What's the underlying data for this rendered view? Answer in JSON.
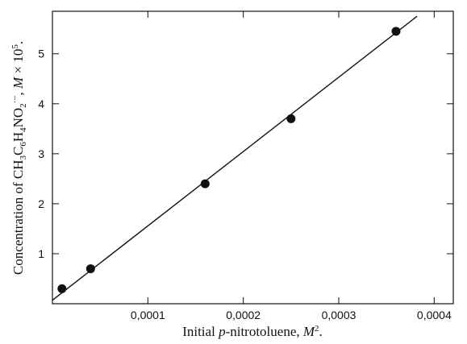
{
  "chart_data": {
    "type": "scatter",
    "title": "",
    "xlabel": {
      "prefix": "Initial ",
      "italic": "p",
      "middle": "-nitrotoluene, ",
      "unit_italic": "M",
      "unit_sup": "2",
      "suffix": "."
    },
    "ylabel": {
      "text": "Concentration of CH",
      "sub1": "3",
      "t2": "C",
      "sub2": "6",
      "t3": "H",
      "sub3": "4",
      "t4": "NO",
      "sub4": "2",
      "sup": "·−",
      "t5": ", ",
      "unit_italic": "M",
      "t6": " × 10",
      "sup2": "5",
      "t7": "."
    },
    "xlim": [
      0,
      0.00042
    ],
    "ylim": [
      0,
      5.85
    ],
    "x_ticks": [
      0.0001,
      0.0002,
      0.0003,
      0.0004
    ],
    "x_tick_labels": [
      "0,0001",
      "0,0002",
      "0,0003",
      "0,0004"
    ],
    "y_ticks": [
      1,
      2,
      3,
      4,
      5
    ],
    "y_tick_labels": [
      "1",
      "2",
      "3",
      "4",
      "5"
    ],
    "series": [
      {
        "x": [
          1e-05,
          4e-05,
          0.00016,
          0.00025,
          0.00036
        ],
        "y": [
          0.3,
          0.7,
          2.4,
          3.7,
          5.45
        ]
      }
    ],
    "fit_line": {
      "x": [
        0.0,
        0.000382
      ],
      "y": [
        0.07,
        5.75
      ]
    },
    "grid": false
  }
}
